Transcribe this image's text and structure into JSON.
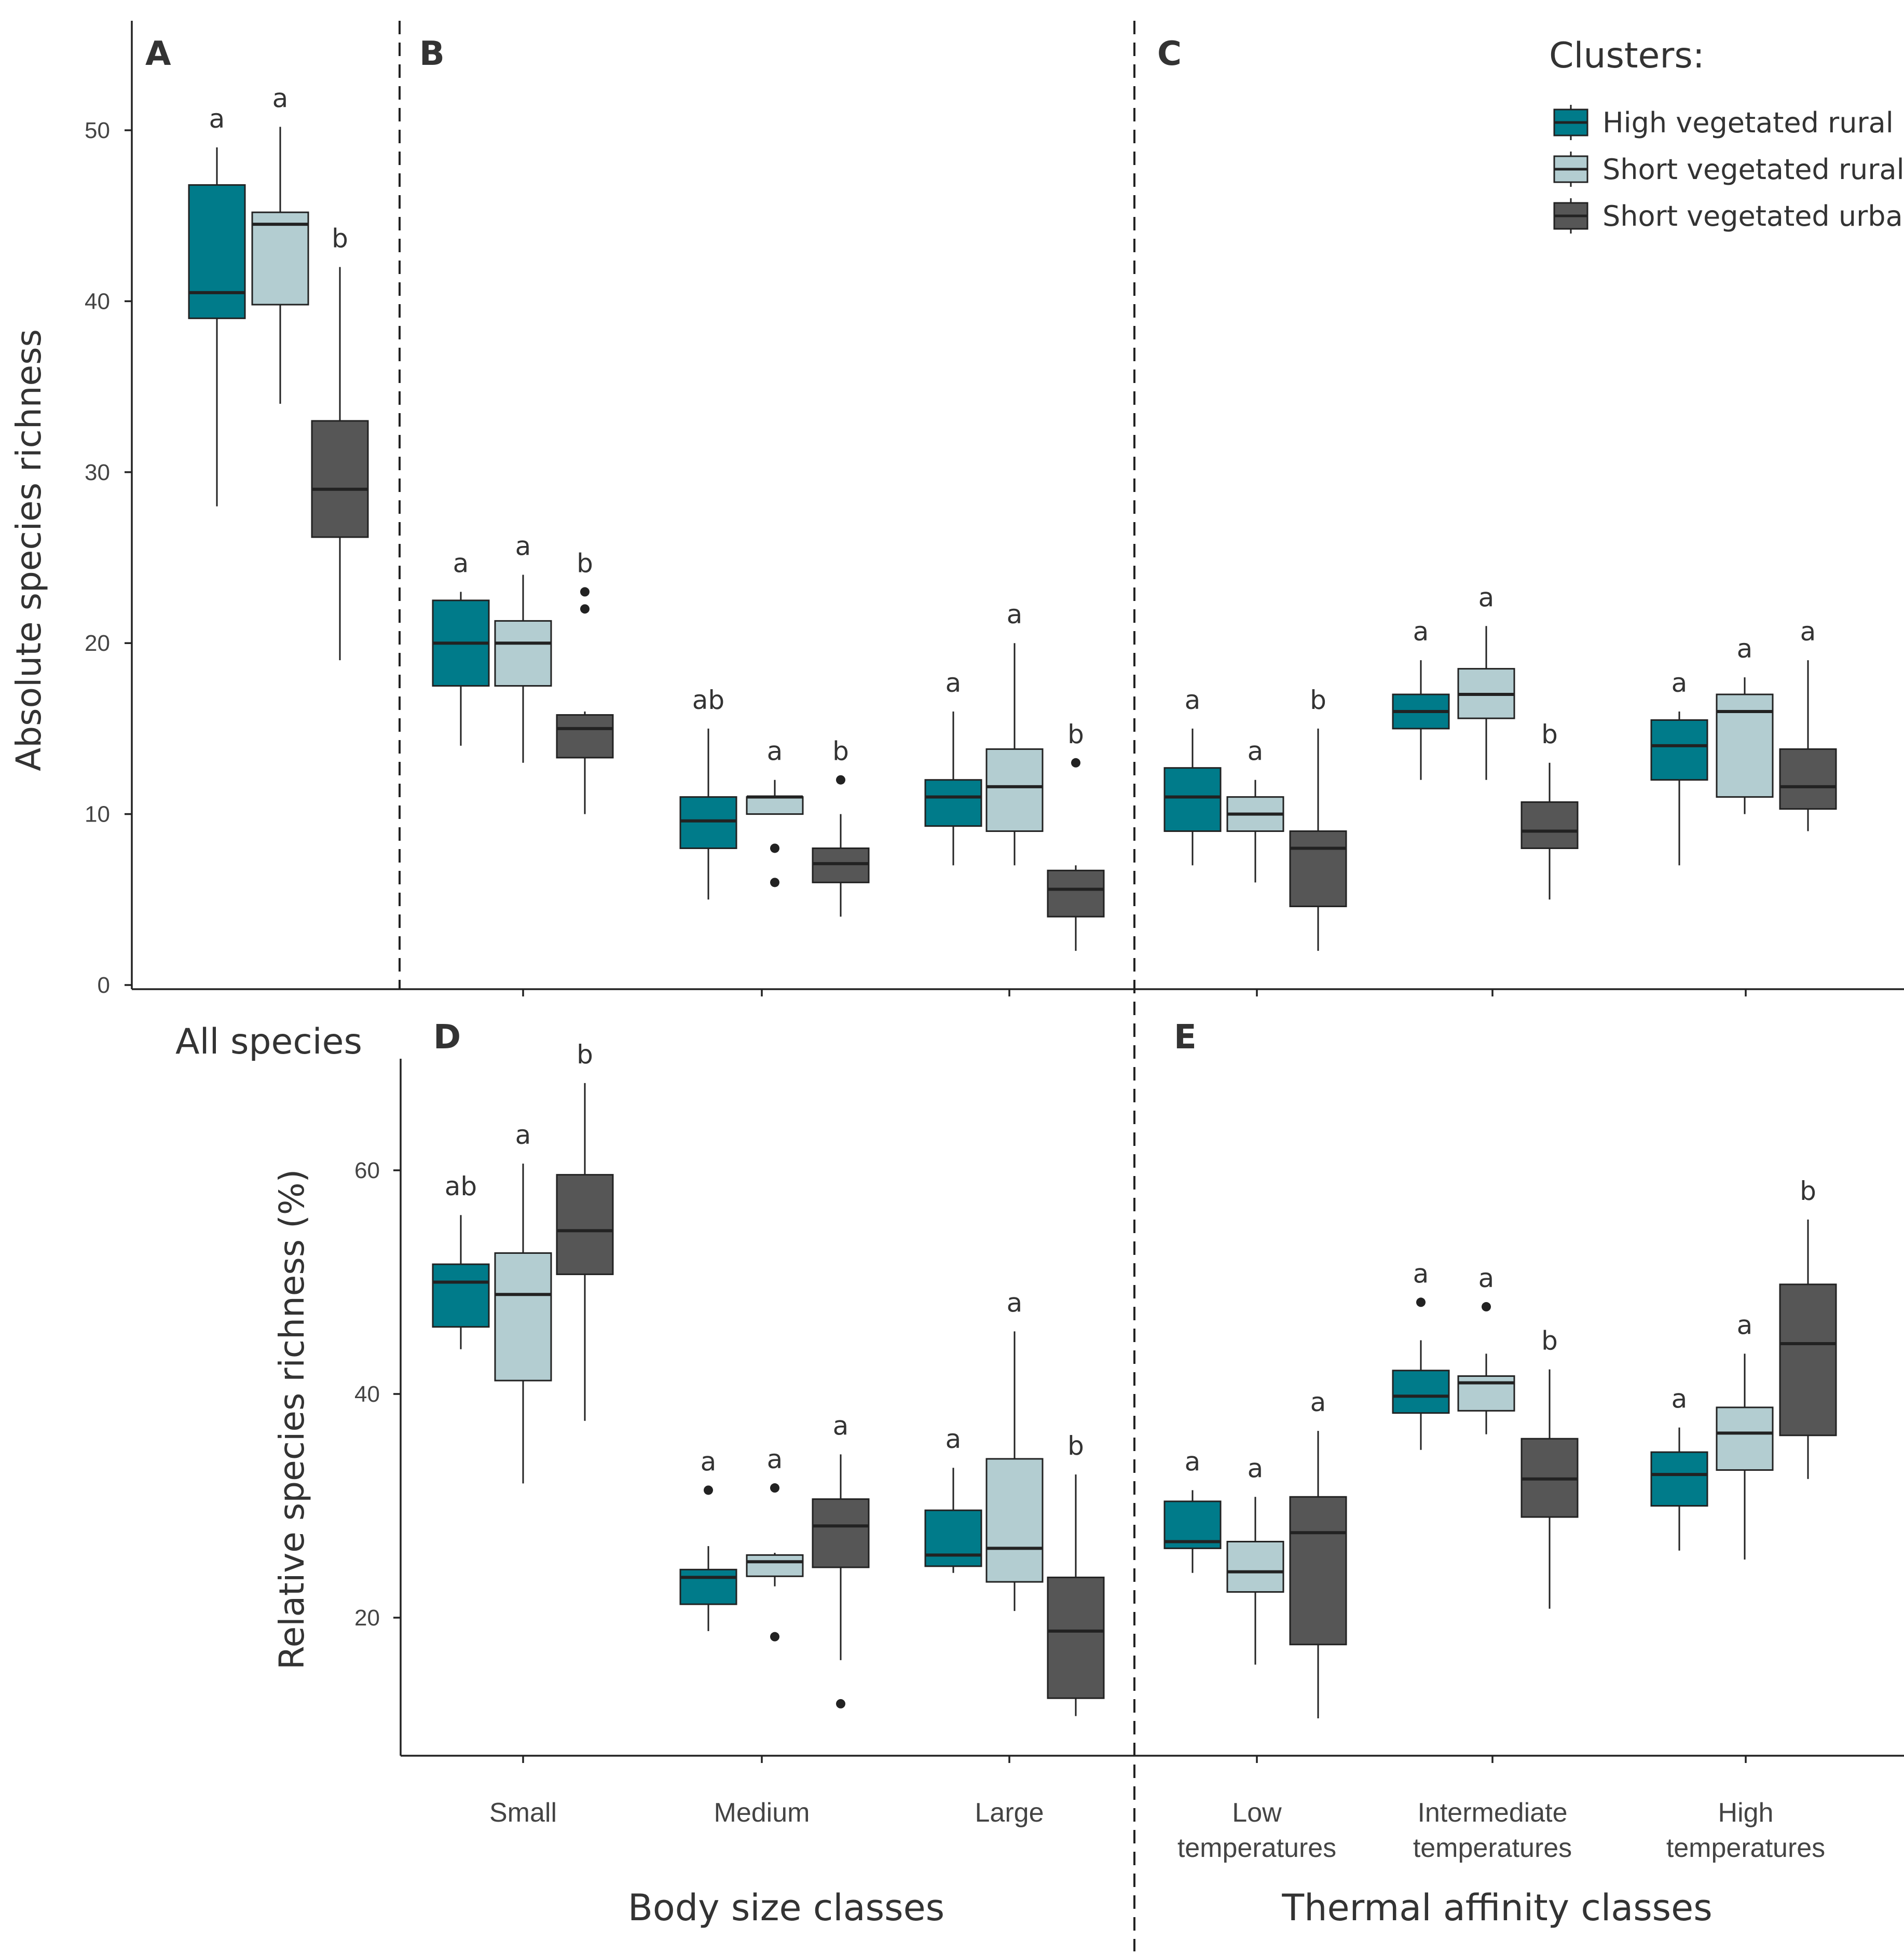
{
  "chart_data": {
    "type": "box",
    "clusters_title": "Clusters:",
    "clusters": [
      {
        "name": "High vegetated rural",
        "color": "#007b8a"
      },
      {
        "name": "Short vegetated rural",
        "color": "#b3cdd1"
      },
      {
        "name": "Short vegetated urban",
        "color": "#565656"
      }
    ],
    "top": {
      "ylabel": "Absolute species richness",
      "ylim": [
        0,
        55
      ],
      "yticks": [
        0,
        10,
        20,
        30,
        40,
        50
      ],
      "groups": [
        {
          "panel": "A",
          "label": "All species",
          "boxes": [
            {
              "cluster": 0,
              "min": 28,
              "q1": 39,
              "median": 40.5,
              "q3": 46.8,
              "max": 49,
              "outliers": [],
              "letter": "a"
            },
            {
              "cluster": 1,
              "min": 34,
              "q1": 39.8,
              "median": 44.5,
              "q3": 45.2,
              "max": 50.2,
              "outliers": [],
              "letter": "a"
            },
            {
              "cluster": 2,
              "min": 19,
              "q1": 26.2,
              "median": 29,
              "q3": 33,
              "max": 42,
              "outliers": [],
              "letter": "b"
            }
          ]
        },
        {
          "panel": "B",
          "label": "Small",
          "boxes": [
            {
              "cluster": 0,
              "min": 14,
              "q1": 17.5,
              "median": 20,
              "q3": 22.5,
              "max": 23,
              "outliers": [],
              "letter": "a"
            },
            {
              "cluster": 1,
              "min": 13,
              "q1": 17.5,
              "median": 20,
              "q3": 21.3,
              "max": 24,
              "outliers": [],
              "letter": "a"
            },
            {
              "cluster": 2,
              "min": 10,
              "q1": 13.3,
              "median": 15,
              "q3": 15.8,
              "max": 16,
              "outliers": [
                22,
                23
              ],
              "letter": "b"
            }
          ]
        },
        {
          "panel": "B",
          "label": "Medium",
          "boxes": [
            {
              "cluster": 0,
              "min": 5,
              "q1": 8,
              "median": 9.6,
              "q3": 11,
              "max": 15,
              "outliers": [],
              "letter": "ab"
            },
            {
              "cluster": 1,
              "min": 10,
              "q1": 10,
              "median": 11,
              "q3": 11,
              "max": 12,
              "outliers": [
                6,
                8
              ],
              "letter": "a"
            },
            {
              "cluster": 2,
              "min": 4,
              "q1": 6,
              "median": 7.1,
              "q3": 8,
              "max": 10,
              "outliers": [
                12
              ],
              "letter": "b"
            }
          ]
        },
        {
          "panel": "B",
          "label": "Large",
          "boxes": [
            {
              "cluster": 0,
              "min": 7,
              "q1": 9.3,
              "median": 11,
              "q3": 12,
              "max": 16,
              "outliers": [],
              "letter": "a"
            },
            {
              "cluster": 1,
              "min": 7,
              "q1": 9,
              "median": 11.6,
              "q3": 13.8,
              "max": 20,
              "outliers": [],
              "letter": "a"
            },
            {
              "cluster": 2,
              "min": 2,
              "q1": 4,
              "median": 5.6,
              "q3": 6.7,
              "max": 7,
              "outliers": [
                13
              ],
              "letter": "b"
            }
          ]
        },
        {
          "panel": "C",
          "label": "Low temperatures",
          "boxes": [
            {
              "cluster": 0,
              "min": 7,
              "q1": 9,
              "median": 11,
              "q3": 12.7,
              "max": 15,
              "outliers": [],
              "letter": "a"
            },
            {
              "cluster": 1,
              "min": 6,
              "q1": 9,
              "median": 10,
              "q3": 11,
              "max": 12,
              "outliers": [],
              "letter": "a"
            },
            {
              "cluster": 2,
              "min": 2,
              "q1": 4.6,
              "median": 8,
              "q3": 9,
              "max": 15,
              "outliers": [],
              "letter": "b"
            }
          ]
        },
        {
          "panel": "C",
          "label": "Intermediate temperatures",
          "boxes": [
            {
              "cluster": 0,
              "min": 12,
              "q1": 15,
              "median": 16,
              "q3": 17,
              "max": 19,
              "outliers": [],
              "letter": "a"
            },
            {
              "cluster": 1,
              "min": 12,
              "q1": 15.6,
              "median": 17,
              "q3": 18.5,
              "max": 21,
              "outliers": [],
              "letter": "a"
            },
            {
              "cluster": 2,
              "min": 5,
              "q1": 8,
              "median": 9,
              "q3": 10.7,
              "max": 13,
              "outliers": [],
              "letter": "b"
            }
          ]
        },
        {
          "panel": "C",
          "label": "High temperatures",
          "boxes": [
            {
              "cluster": 0,
              "min": 7,
              "q1": 12,
              "median": 14,
              "q3": 15.5,
              "max": 16,
              "outliers": [],
              "letter": "a"
            },
            {
              "cluster": 1,
              "min": 10,
              "q1": 11,
              "median": 16,
              "q3": 17,
              "max": 18,
              "outliers": [],
              "letter": "a"
            },
            {
              "cluster": 2,
              "min": 9,
              "q1": 10.3,
              "median": 11.6,
              "q3": 13.8,
              "max": 19,
              "outliers": [],
              "letter": "a"
            }
          ]
        }
      ]
    },
    "bottom": {
      "ylabel": "Relative species richness (%)",
      "ylim": [
        10,
        72
      ],
      "yticks": [
        20,
        40,
        60
      ],
      "groups": [
        {
          "panel": "D",
          "label": "Small",
          "boxes": [
            {
              "cluster": 0,
              "min": 44,
              "q1": 46,
              "median": 50,
              "q3": 51.6,
              "max": 56,
              "outliers": [],
              "letter": "ab"
            },
            {
              "cluster": 1,
              "min": 32,
              "q1": 41.2,
              "median": 48.9,
              "q3": 52.6,
              "max": 60.6,
              "outliers": [],
              "letter": "a"
            },
            {
              "cluster": 2,
              "min": 37.6,
              "q1": 50.7,
              "median": 54.6,
              "q3": 59.6,
              "max": 67.8,
              "outliers": [],
              "letter": "b"
            }
          ]
        },
        {
          "panel": "D",
          "label": "Medium",
          "boxes": [
            {
              "cluster": 0,
              "min": 18.8,
              "q1": 21.2,
              "median": 23.6,
              "q3": 24.3,
              "max": 26.4,
              "outliers": [
                31.4
              ],
              "letter": "a"
            },
            {
              "cluster": 1,
              "min": 22.8,
              "q1": 23.7,
              "median": 25,
              "q3": 25.6,
              "max": 25.8,
              "outliers": [
                18.3,
                31.6
              ],
              "letter": "a"
            },
            {
              "cluster": 2,
              "min": 16.2,
              "q1": 24.5,
              "median": 28.2,
              "q3": 30.6,
              "max": 34.6,
              "outliers": [
                12.3
              ],
              "letter": "a"
            }
          ]
        },
        {
          "panel": "D",
          "label": "Large",
          "boxes": [
            {
              "cluster": 0,
              "min": 24,
              "q1": 24.6,
              "median": 25.6,
              "q3": 29.6,
              "max": 33.4,
              "outliers": [],
              "letter": "a"
            },
            {
              "cluster": 1,
              "min": 20.6,
              "q1": 23.2,
              "median": 26.2,
              "q3": 34.2,
              "max": 45.6,
              "outliers": [],
              "letter": "a"
            },
            {
              "cluster": 2,
              "min": 11.2,
              "q1": 12.8,
              "median": 18.8,
              "q3": 23.6,
              "max": 32.8,
              "outliers": [],
              "letter": "b"
            }
          ]
        },
        {
          "panel": "E",
          "label": "Low temperatures",
          "boxes": [
            {
              "cluster": 0,
              "min": 24,
              "q1": 26.2,
              "median": 26.8,
              "q3": 30.4,
              "max": 31.4,
              "outliers": [],
              "letter": "a"
            },
            {
              "cluster": 1,
              "min": 15.8,
              "q1": 22.3,
              "median": 24.1,
              "q3": 26.8,
              "max": 30.8,
              "outliers": [],
              "letter": "a"
            },
            {
              "cluster": 2,
              "min": 11,
              "q1": 17.6,
              "median": 27.6,
              "q3": 30.8,
              "max": 36.7,
              "outliers": [],
              "letter": "a"
            }
          ]
        },
        {
          "panel": "E",
          "label": "Intermediate temperatures",
          "boxes": [
            {
              "cluster": 0,
              "min": 35,
              "q1": 38.3,
              "median": 39.8,
              "q3": 42.1,
              "max": 44.8,
              "outliers": [
                48.2
              ],
              "letter": "a"
            },
            {
              "cluster": 1,
              "min": 36.4,
              "q1": 38.5,
              "median": 41,
              "q3": 41.6,
              "max": 43.6,
              "outliers": [
                47.8
              ],
              "letter": "a"
            },
            {
              "cluster": 2,
              "min": 20.8,
              "q1": 29,
              "median": 32.4,
              "q3": 36,
              "max": 42.2,
              "outliers": [],
              "letter": "b"
            }
          ]
        },
        {
          "panel": "E",
          "label": "High temperatures",
          "boxes": [
            {
              "cluster": 0,
              "min": 26,
              "q1": 30,
              "median": 32.8,
              "q3": 34.8,
              "max": 37,
              "outliers": [],
              "letter": "a"
            },
            {
              "cluster": 1,
              "min": 25.2,
              "q1": 33.2,
              "median": 36.5,
              "q3": 38.8,
              "max": 43.6,
              "outliers": [],
              "letter": "a"
            },
            {
              "cluster": 2,
              "min": 32.4,
              "q1": 36.3,
              "median": 44.5,
              "q3": 49.8,
              "max": 55.6,
              "outliers": [],
              "letter": "b"
            }
          ]
        }
      ]
    },
    "xlabel_body": "Body size classes",
    "xlabel_thermal": "Thermal affinity classes",
    "category_labels": [
      {
        "lines": [
          "Small"
        ]
      },
      {
        "lines": [
          "Medium"
        ]
      },
      {
        "lines": [
          "Large"
        ]
      },
      {
        "lines": [
          "Low",
          "temperatures"
        ]
      },
      {
        "lines": [
          "Intermediate",
          "temperatures"
        ]
      },
      {
        "lines": [
          "High",
          "temperatures"
        ]
      }
    ]
  }
}
